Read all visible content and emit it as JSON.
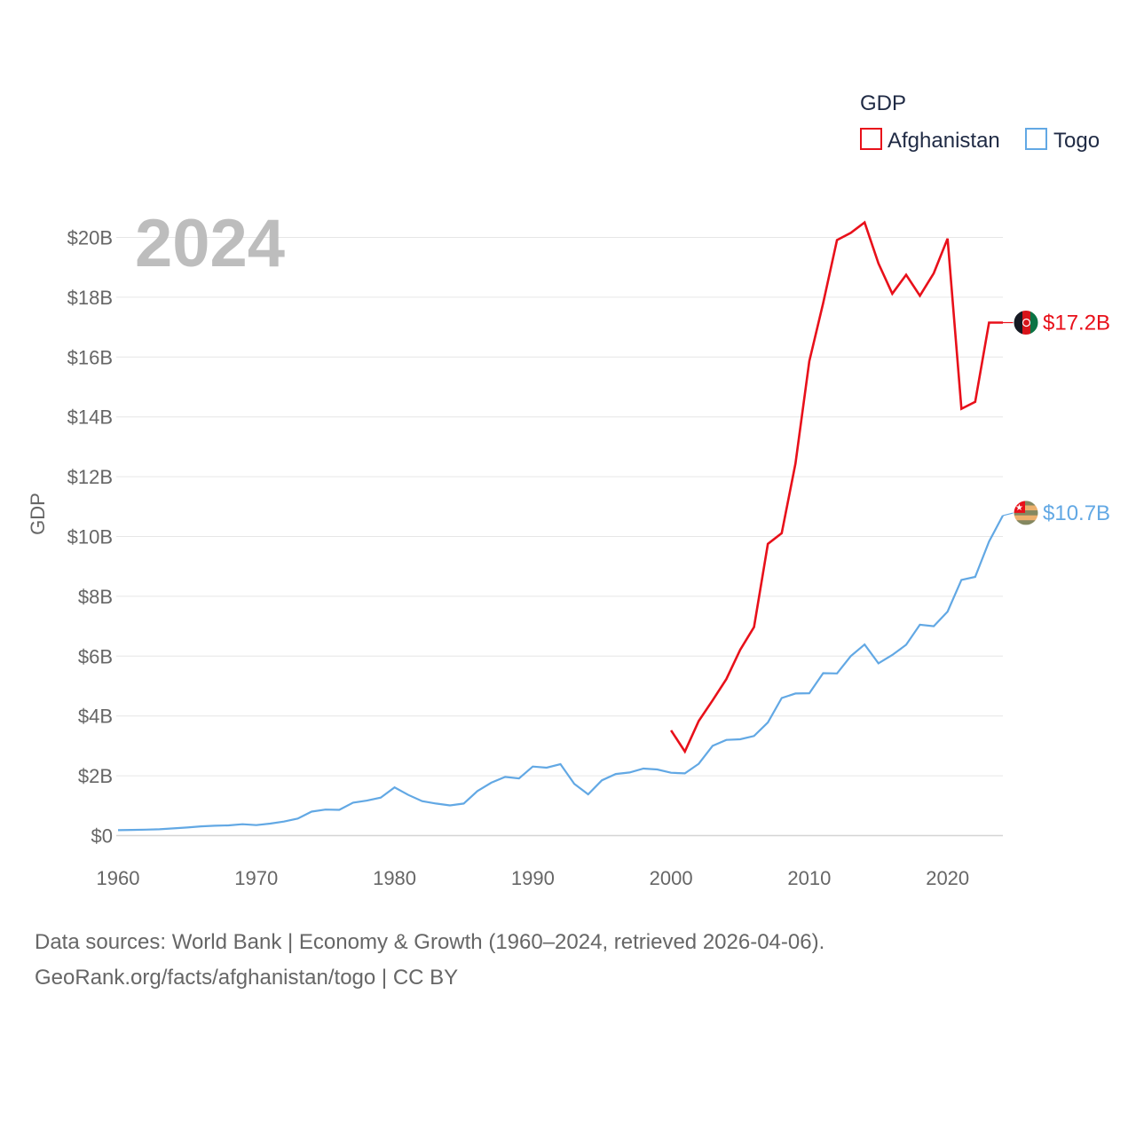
{
  "chart_data": {
    "type": "line",
    "year_label": "2024",
    "ylabel": "GDP",
    "xlim": [
      1960,
      2024
    ],
    "ylim": [
      0,
      21
    ],
    "y_ticks": [
      0,
      2,
      4,
      6,
      8,
      10,
      12,
      14,
      16,
      18,
      20
    ],
    "y_tick_labels": [
      "$0",
      "$2B",
      "$4B",
      "$6B",
      "$8B",
      "$10B",
      "$12B",
      "$14B",
      "$16B",
      "$18B",
      "$20B"
    ],
    "x_ticks": [
      1960,
      1970,
      1980,
      1990,
      2000,
      2010,
      2020
    ],
    "x_tick_labels": [
      "1960",
      "1970",
      "1980",
      "1990",
      "2000",
      "2010",
      "2020"
    ],
    "legend": {
      "title": "GDP",
      "position": "top-right"
    },
    "series": [
      {
        "name": "Afghanistan",
        "color": "#e8101a",
        "end_label": "$17.2B",
        "flag_icon": "afghanistan-flag-icon",
        "x": [
          2000,
          2001,
          2002,
          2003,
          2004,
          2005,
          2006,
          2007,
          2008,
          2009,
          2010,
          2011,
          2012,
          2013,
          2014,
          2015,
          2016,
          2017,
          2018,
          2019,
          2020,
          2021,
          2022,
          2023,
          2024
        ],
        "values": [
          3.52,
          2.81,
          3.83,
          4.52,
          5.23,
          6.21,
          6.97,
          9.75,
          10.11,
          12.44,
          15.86,
          17.8,
          19.91,
          20.15,
          20.5,
          19.13,
          18.12,
          18.75,
          18.05,
          18.8,
          19.96,
          14.27,
          14.5,
          17.15,
          17.15
        ]
      },
      {
        "name": "Togo",
        "color": "#62a8e4",
        "end_label": "$10.7B",
        "flag_icon": "togo-flag-icon",
        "x": [
          1960,
          1961,
          1962,
          1963,
          1964,
          1965,
          1966,
          1967,
          1968,
          1969,
          1970,
          1971,
          1972,
          1973,
          1974,
          1975,
          1976,
          1977,
          1978,
          1979,
          1980,
          1981,
          1982,
          1983,
          1984,
          1985,
          1986,
          1987,
          1988,
          1989,
          1990,
          1991,
          1992,
          1993,
          1994,
          1995,
          1996,
          1997,
          1998,
          1999,
          2000,
          2001,
          2002,
          2003,
          2004,
          2005,
          2006,
          2007,
          2008,
          2009,
          2010,
          2011,
          2012,
          2013,
          2014,
          2015,
          2016,
          2017,
          2018,
          2019,
          2020,
          2021,
          2022,
          2023,
          2024
        ],
        "values": [
          0.18,
          0.19,
          0.2,
          0.21,
          0.24,
          0.27,
          0.31,
          0.33,
          0.34,
          0.38,
          0.35,
          0.4,
          0.47,
          0.57,
          0.8,
          0.87,
          0.86,
          1.1,
          1.17,
          1.27,
          1.61,
          1.36,
          1.15,
          1.07,
          1.01,
          1.07,
          1.49,
          1.77,
          1.96,
          1.91,
          2.31,
          2.27,
          2.39,
          1.73,
          1.38,
          1.85,
          2.06,
          2.11,
          2.24,
          2.21,
          2.1,
          2.08,
          2.4,
          3.0,
          3.2,
          3.22,
          3.33,
          3.78,
          4.6,
          4.75,
          4.76,
          5.43,
          5.42,
          6.0,
          6.39,
          5.76,
          6.04,
          6.38,
          7.05,
          7.0,
          7.49,
          8.55,
          8.65,
          9.83,
          10.7
        ]
      }
    ]
  },
  "footer": {
    "line1": "Data sources: World Bank | Economy & Growth (1960–2024, retrieved 2026-04-06).",
    "line2": "GeoRank.org/facts/afghanistan/togo | CC BY"
  }
}
